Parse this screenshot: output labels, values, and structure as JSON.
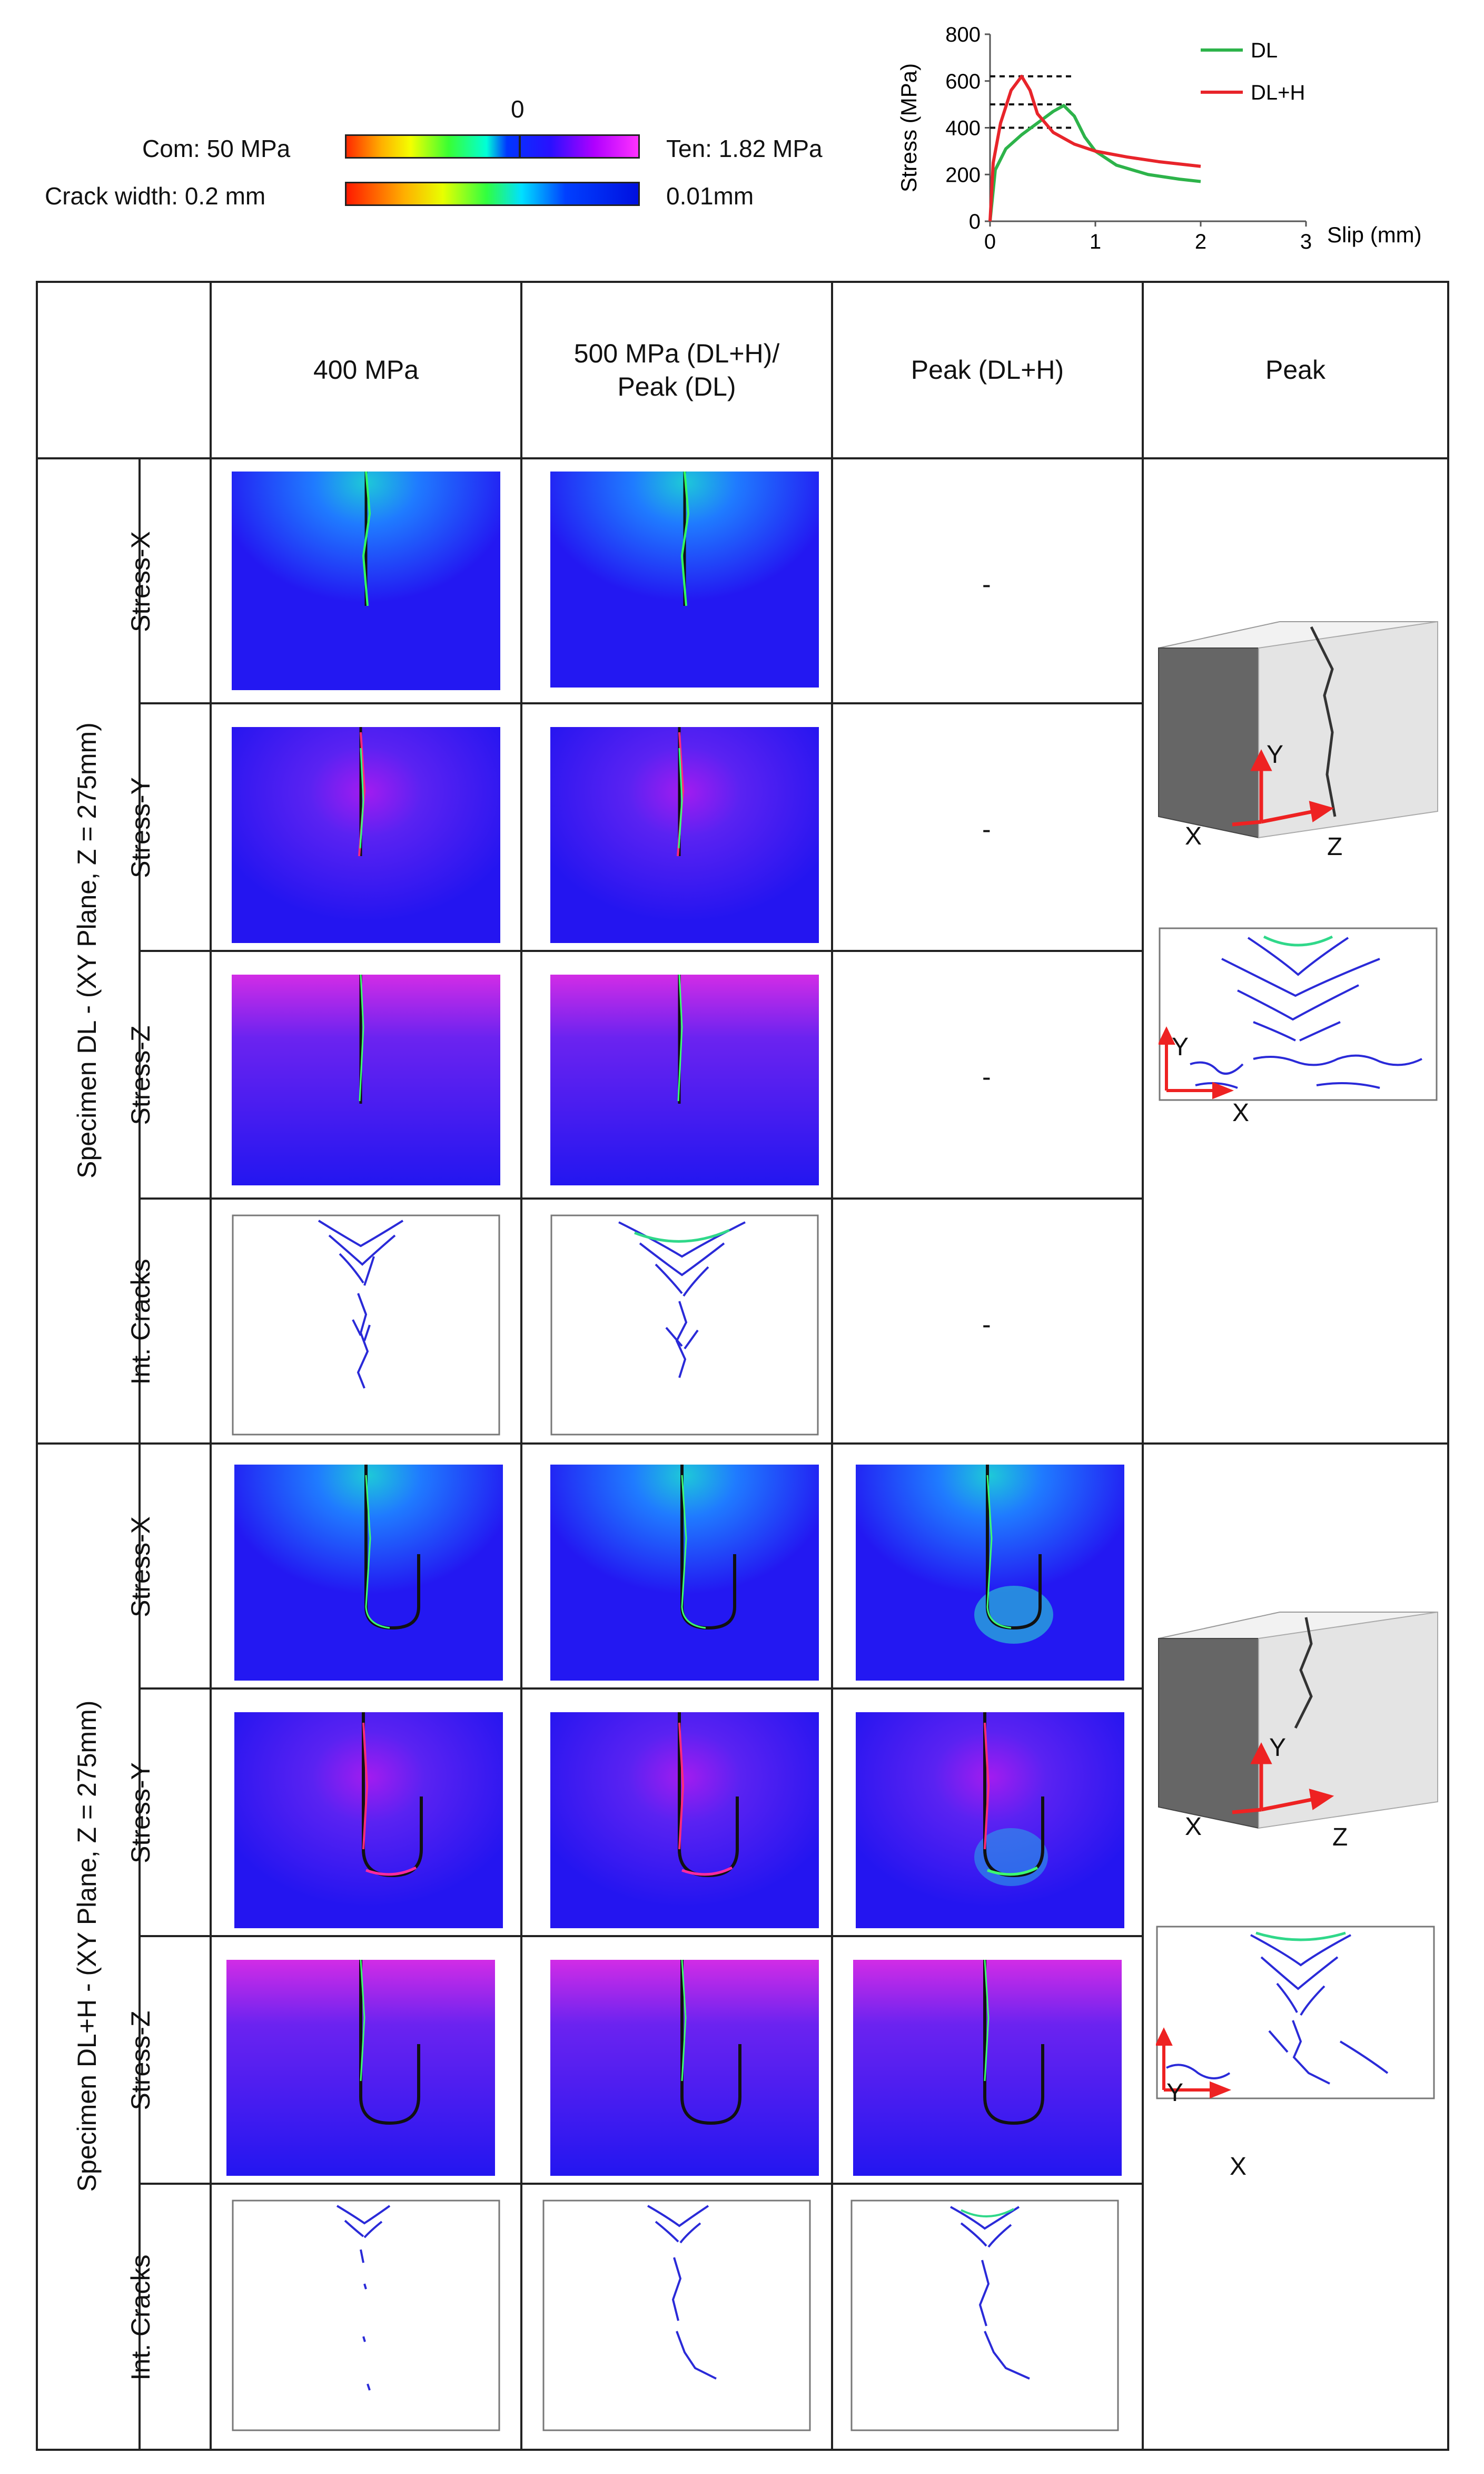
{
  "legend": {
    "zero_label": "0",
    "com_label": "Com: 50 MPa",
    "ten_label": "Ten: 1.82 MPa",
    "crack_label": "Crack width: 0.2 mm",
    "crack_min_label": "0.01mm"
  },
  "chart_data": {
    "type": "line",
    "xlabel": "Slip (mm)",
    "ylabel": "Stress (MPa)",
    "xlim": [
      0,
      3
    ],
    "ylim": [
      0,
      800
    ],
    "xticks": [
      "0",
      "1",
      "2",
      "3"
    ],
    "yticks": [
      "0",
      "200",
      "400",
      "600",
      "800"
    ],
    "legend_position": "top-right",
    "reference_lines_y": [
      400,
      500,
      620
    ],
    "series": [
      {
        "name": "DL",
        "color": "#2db34a",
        "x": [
          0,
          0.05,
          0.15,
          0.3,
          0.45,
          0.6,
          0.7,
          0.8,
          0.9,
          1.0,
          1.2,
          1.5,
          1.8,
          2.0
        ],
        "y": [
          0,
          220,
          310,
          370,
          420,
          470,
          495,
          450,
          360,
          300,
          240,
          200,
          180,
          170
        ]
      },
      {
        "name": "DL+H",
        "color": "#e8242a",
        "x": [
          0,
          0.03,
          0.1,
          0.2,
          0.3,
          0.38,
          0.45,
          0.6,
          0.8,
          1.0,
          1.3,
          1.6,
          2.0
        ],
        "y": [
          0,
          250,
          420,
          560,
          620,
          560,
          460,
          380,
          330,
          300,
          275,
          255,
          235
        ]
      }
    ]
  },
  "table": {
    "columns": [
      "400 MPa",
      "500 MPa (DL+H)/\nPeak (DL)",
      "Peak (DL+H)",
      "Peak"
    ],
    "groups": [
      {
        "label": "Specimen DL - (XY Plane, Z = 275mm)",
        "rows": [
          "Stress-X",
          "Stress-Y",
          "Stress-Z",
          "Int. Cracks"
        ],
        "missing": "-"
      },
      {
        "label": "Specimen DL+H  - (XY Plane, Z = 275mm)",
        "rows": [
          "Stress-X",
          "Stress-Y",
          "Stress-Z",
          "Int. Cracks"
        ]
      }
    ],
    "axis_labels": {
      "x": "X",
      "y": "Y",
      "z": "Z"
    }
  }
}
